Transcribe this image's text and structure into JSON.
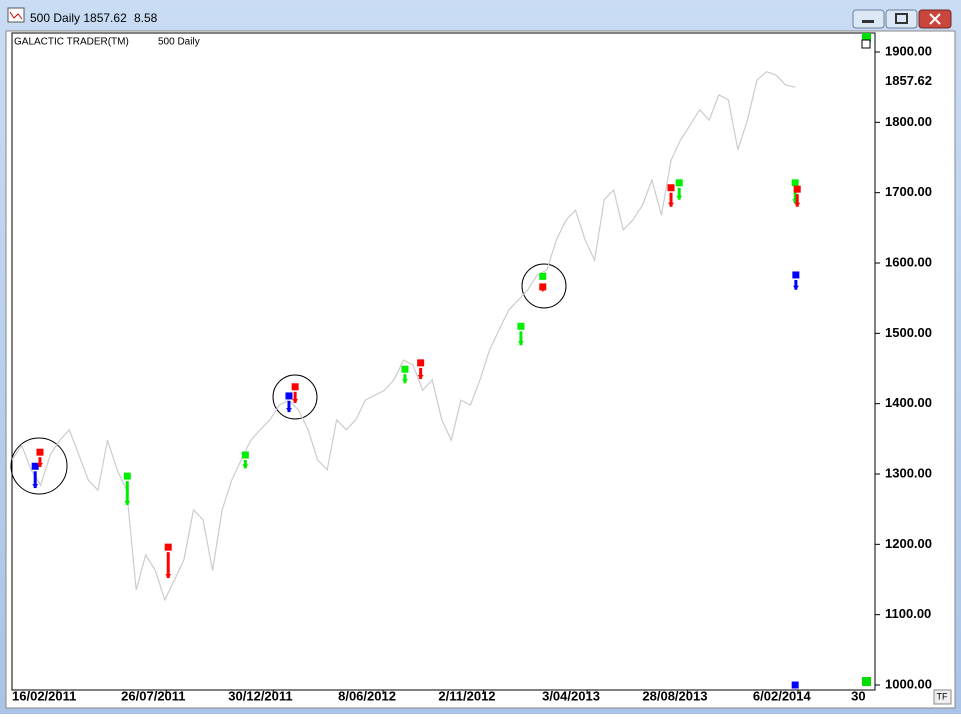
{
  "window": {
    "title": "500 Daily 1857.62",
    "change": "8.58",
    "corner_button": "TF"
  },
  "chart_data": {
    "type": "line",
    "title": "GALACTIC TRADER(TM)",
    "subtitle": "500 Daily",
    "current_price": 1857.62,
    "x": [
      "12/12/2010",
      "26/12/2010",
      "9/01/2011",
      "23/01/2011",
      "6/02/2011",
      "20/02/2011",
      "6/03/2011",
      "20/03/2011",
      "3/04/2011",
      "17/04/2011",
      "1/05/2011",
      "15/05/2011",
      "29/05/2011",
      "12/06/2011",
      "26/06/2011",
      "10/07/2011",
      "24/07/2011",
      "7/08/2011",
      "21/08/2011",
      "4/09/2011",
      "18/09/2011",
      "2/10/2011",
      "16/10/2011",
      "30/10/2011",
      "13/11/2011",
      "27/11/2011",
      "11/12/2011",
      "25/12/2011",
      "8/01/2012",
      "22/01/2012",
      "5/02/2012",
      "19/02/2012",
      "4/03/2012",
      "18/03/2012",
      "1/04/2012",
      "15/04/2012",
      "29/04/2012",
      "13/05/2012",
      "27/05/2012",
      "10/06/2012",
      "24/06/2012",
      "8/07/2012",
      "22/07/2012",
      "5/08/2012",
      "19/08/2012",
      "2/09/2012",
      "16/09/2012",
      "30/09/2012",
      "14/10/2012",
      "28/10/2012",
      "11/11/2012",
      "25/11/2012",
      "9/12/2012",
      "23/12/2012",
      "6/01/2013",
      "20/01/2013",
      "3/02/2013",
      "17/02/2013",
      "3/03/2013",
      "17/03/2013",
      "31/03/2013",
      "14/04/2013",
      "28/04/2013",
      "12/05/2013",
      "26/05/2013",
      "9/06/2013",
      "23/06/2013",
      "7/07/2013",
      "21/07/2013",
      "4/08/2013",
      "18/08/2013",
      "1/09/2013",
      "15/09/2013",
      "29/09/2013",
      "13/10/2013",
      "27/10/2013",
      "10/11/2013",
      "24/11/2013",
      "8/12/2013",
      "22/12/2013",
      "5/01/2014",
      "19/01/2014",
      "2/02/2014"
    ],
    "values": [
      1320,
      1341,
      1306,
      1284,
      1327,
      1348,
      1363,
      1327,
      1291,
      1277,
      1348,
      1306,
      1277,
      1135,
      1185,
      1163,
      1121,
      1149,
      1178,
      1249,
      1235,
      1163,
      1249,
      1291,
      1320,
      1348,
      1363,
      1377,
      1398,
      1405,
      1391,
      1363,
      1320,
      1306,
      1377,
      1363,
      1377,
      1405,
      1412,
      1419,
      1434,
      1462,
      1455,
      1419,
      1434,
      1377,
      1348,
      1405,
      1398,
      1434,
      1476,
      1505,
      1533,
      1547,
      1562,
      1583,
      1590,
      1633,
      1661,
      1675,
      1633,
      1604,
      1690,
      1704,
      1647,
      1661,
      1682,
      1718,
      1668,
      1746,
      1775,
      1796,
      1818,
      1803,
      1839,
      1832,
      1761,
      1803,
      1860,
      1872,
      1867,
      1853,
      1850
    ],
    "color": "#cccccc",
    "xlim": [
      "12/12/2010",
      "30/05/2014"
    ],
    "xticks": [
      "16/02/2011",
      "26/07/2011",
      "30/12/2011",
      "8/06/2012",
      "2/11/2012",
      "3/04/2013",
      "28/08/2013",
      "6/02/2014",
      {
        "value": "30/06/2014",
        "label": "30"
      }
    ],
    "ylim": [
      1000,
      1900
    ],
    "yticks": [
      {
        "value": 1000,
        "label": "1000.00"
      },
      {
        "value": 1100,
        "label": "1100.00"
      },
      {
        "value": 1200,
        "label": "1200.00"
      },
      {
        "value": 1300,
        "label": "1300.00"
      },
      {
        "value": 1400,
        "label": "1400.00"
      },
      {
        "value": 1500,
        "label": "1500.00"
      },
      {
        "value": 1600,
        "label": "1600.00"
      },
      {
        "value": 1700,
        "label": "1700.00"
      },
      {
        "value": 1800,
        "label": "1800.00"
      },
      {
        "value": 1900,
        "label": "1900.00"
      }
    ],
    "grid": false,
    "signals": [
      {
        "x": "15/01/2011",
        "y": 1311,
        "y_end": 1280,
        "color": "#0000ff"
      },
      {
        "x": "22/01/2011",
        "y": 1331,
        "y_end": 1310,
        "color": "#ff0000"
      },
      {
        "x": "30/05/2011",
        "y": 1297,
        "y_end": 1256,
        "color": "#00ee00"
      },
      {
        "x": "29/07/2011",
        "y": 1196,
        "y_end": 1152,
        "color": "#ff0000"
      },
      {
        "x": "19/11/2011",
        "y": 1327,
        "y_end": 1308,
        "color": "#00ee00"
      },
      {
        "x": "22/01/2012",
        "y": 1411,
        "y_end": 1388,
        "color": "#0000ff"
      },
      {
        "x": "31/01/2012",
        "y": 1424,
        "y_end": 1401,
        "color": "#ff0000"
      },
      {
        "x": "10/07/2012",
        "y": 1449,
        "y_end": 1429,
        "color": "#00ee00"
      },
      {
        "x": "2/08/2012",
        "y": 1458,
        "y_end": 1435,
        "color": "#ff0000"
      },
      {
        "x": "27/12/2012",
        "y": 1510,
        "y_end": 1483,
        "color": "#00ee00"
      },
      {
        "x": "28/01/2013",
        "y": 1581,
        "color": "#00ee00"
      },
      {
        "x": "28/01/2013",
        "y": 1566,
        "y_end": 1559,
        "color": "#ff0000"
      },
      {
        "x": "4/08/2013",
        "y": 1707,
        "y_end": 1680,
        "color": "#ff0000"
      },
      {
        "x": "16/08/2013",
        "y": 1714,
        "y_end": 1690,
        "color": "#00ee00"
      },
      {
        "x": "2/02/2014",
        "y": 1714,
        "y_end": 1685,
        "color": "#00ee00"
      },
      {
        "x": "5/02/2014",
        "y": 1705,
        "y_end": 1680,
        "color": "#ff0000"
      },
      {
        "x": "3/02/2014",
        "y": 1583,
        "y_end": 1562,
        "color": "#0000ff"
      },
      {
        "x": "2/02/2014",
        "y": 1000,
        "color": "#0000ff"
      }
    ]
  }
}
